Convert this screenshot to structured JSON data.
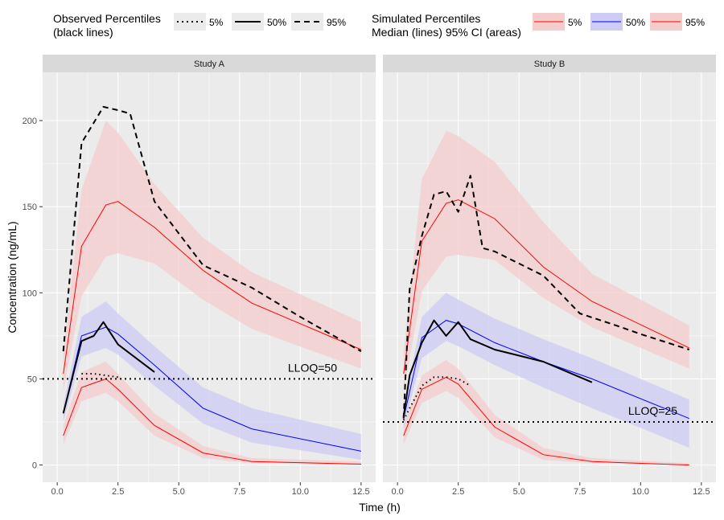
{
  "legend": {
    "observed": {
      "title_line1": "Observed Percentiles",
      "title_line2": "(black lines)",
      "items": [
        {
          "label": "5%",
          "style": "dotted"
        },
        {
          "label": "50%",
          "style": "solid"
        },
        {
          "label": "95%",
          "style": "dashed"
        }
      ]
    },
    "simulated": {
      "title_line1": "Simulated Percentiles",
      "title_line2": "Median (lines) 95% CI (areas)",
      "items": [
        {
          "label": "5%",
          "color": "#ff0000",
          "fill": "#f4cccc"
        },
        {
          "label": "50%",
          "color": "#0000ff",
          "fill": "#ccccf4"
        },
        {
          "label": "95%",
          "color": "#ff0000",
          "fill": "#f4cccc"
        }
      ]
    }
  },
  "axes": {
    "xlabel": "Time (h)",
    "ylabel": "Concentration (ng/mL)",
    "xlim": [
      -0.6,
      13.1
    ],
    "ylim": [
      -10,
      228
    ],
    "xticks": [
      "0.0",
      "2.5",
      "5.0",
      "7.5",
      "10.0",
      "12.5"
    ],
    "xtick_values": [
      0,
      2.5,
      5,
      7.5,
      10,
      12.5
    ],
    "yticks": [
      "0",
      "50",
      "100",
      "150",
      "200"
    ],
    "ytick_values": [
      0,
      50,
      100,
      150,
      200
    ]
  },
  "colors": {
    "panel_bg": "#ebebeb",
    "strip_bg": "#d9d9d9",
    "grid": "#ffffff",
    "red": "#ff0000",
    "blue": "#0000ff",
    "red_band": "#f4cccc",
    "blue_band": "#ccccf4"
  },
  "chart_data": [
    {
      "type": "line",
      "panel": "Study A",
      "lloq": {
        "value": 50,
        "label": "LLOQ=50",
        "label_x": 10.5
      },
      "simulated": {
        "x": [
          0.25,
          1,
          2,
          2.5,
          4,
          6,
          8,
          12.5
        ],
        "p05": {
          "median": [
            17,
            45,
            50,
            44,
            23,
            7,
            2,
            0.5
          ],
          "lower": [
            12,
            37,
            42,
            37,
            17,
            4,
            1,
            0
          ],
          "upper": [
            23,
            54,
            60,
            53,
            30,
            11,
            4,
            2
          ]
        },
        "p50": {
          "median": [
            30,
            75,
            80,
            76,
            58,
            33,
            21,
            8
          ],
          "lower": [
            25,
            63,
            68,
            64,
            46,
            24,
            13,
            3
          ],
          "upper": [
            35,
            86,
            95,
            88,
            69,
            45,
            33,
            18
          ]
        },
        "p95": {
          "median": [
            53,
            127,
            151,
            153,
            138,
            113,
            94,
            67
          ],
          "lower": [
            43,
            98,
            121,
            123,
            117,
            96,
            79,
            56
          ],
          "upper": [
            64,
            160,
            200,
            193,
            163,
            132,
            112,
            83
          ]
        }
      },
      "observed": {
        "p05": {
          "x": [
            1,
            1.5,
            2,
            2.5
          ],
          "y": [
            53,
            53,
            52,
            51
          ]
        },
        "p50": {
          "x": [
            0.25,
            1,
            1.5,
            1.9,
            2.5,
            4
          ],
          "y": [
            30,
            72,
            75,
            83,
            70,
            54
          ]
        },
        "p95": {
          "x": [
            0.25,
            1,
            1.9,
            2.5,
            3,
            4,
            6,
            8,
            10,
            12.5
          ],
          "y": [
            66,
            187,
            208,
            206,
            204,
            153,
            116,
            103,
            86,
            66
          ]
        }
      }
    },
    {
      "type": "line",
      "panel": "Study B",
      "lloq": {
        "value": 25,
        "label": "LLOQ=25",
        "label_x": 10.5
      },
      "simulated": {
        "x": [
          0.25,
          1,
          2,
          2.5,
          4,
          6,
          8,
          12
        ],
        "p05": {
          "median": [
            17,
            44,
            51,
            47,
            22,
            6,
            2,
            0
          ],
          "lower": [
            12,
            36,
            43,
            39,
            16,
            3,
            1,
            0
          ],
          "upper": [
            23,
            52,
            61,
            56,
            29,
            10,
            4,
            1
          ]
        },
        "p50": {
          "median": [
            27,
            74,
            84,
            82,
            71,
            60,
            50,
            27
          ],
          "lower": [
            22,
            62,
            72,
            69,
            58,
            45,
            33,
            10
          ],
          "upper": [
            33,
            86,
            100,
            96,
            85,
            73,
            62,
            38
          ]
        },
        "p95": {
          "median": [
            53,
            130,
            152,
            154,
            143,
            115,
            95,
            68
          ],
          "lower": [
            43,
            101,
            121,
            122,
            119,
            97,
            80,
            56
          ],
          "upper": [
            65,
            166,
            194,
            191,
            176,
            141,
            111,
            81
          ]
        }
      },
      "observed": {
        "p05": {
          "x": [
            0.25,
            0.5,
            1,
            1.5,
            2,
            2.5,
            3
          ],
          "y": [
            26,
            33,
            46,
            51,
            51,
            50,
            46
          ]
        },
        "p50": {
          "x": [
            0.25,
            0.5,
            1,
            1.5,
            2,
            2.5,
            3,
            4,
            6,
            8
          ],
          "y": [
            28,
            52,
            71,
            84,
            75,
            83,
            73,
            67,
            60,
            48
          ]
        },
        "p95": {
          "x": [
            0.25,
            0.5,
            1,
            1.5,
            2,
            2.5,
            3,
            3.5,
            4,
            6,
            7.5,
            9,
            10,
            12
          ],
          "y": [
            27,
            102,
            133,
            157,
            159,
            147,
            168,
            126,
            124,
            110,
            88,
            81,
            76,
            67
          ]
        }
      }
    }
  ]
}
